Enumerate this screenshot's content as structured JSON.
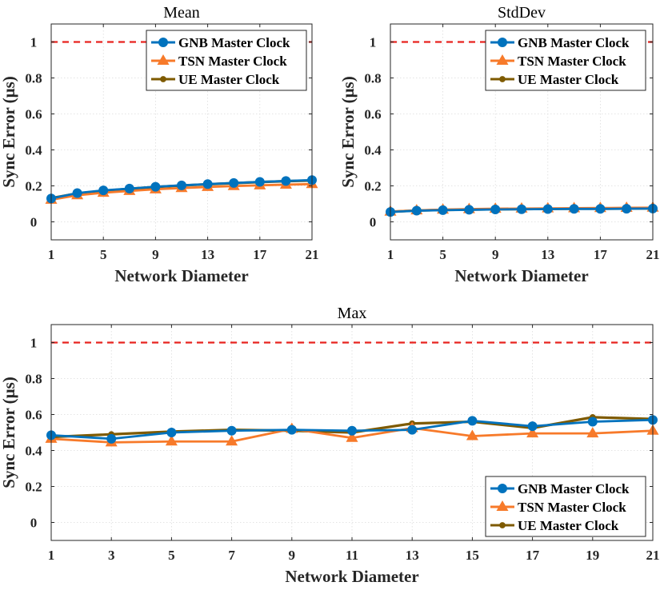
{
  "chart_data": [
    {
      "id": "mean",
      "type": "line",
      "title": "Mean",
      "xlabel": "Network Diameter",
      "ylabel": "Sync Error (μs)",
      "xlim": [
        1,
        21
      ],
      "ylim": [
        -0.1,
        1.1
      ],
      "xticks": [
        1,
        5,
        9,
        13,
        17,
        21
      ],
      "yticks": [
        0,
        0.2,
        0.4,
        0.6,
        0.8,
        1
      ],
      "ytick_labels": [
        "0",
        "0.2",
        "0.4",
        "0.6",
        "0.8",
        "1"
      ],
      "grid": true,
      "legend_position": "top-right",
      "reference_line": 1,
      "x": [
        1,
        3,
        5,
        7,
        9,
        11,
        13,
        15,
        17,
        19,
        21
      ],
      "series": [
        {
          "name": "GNB Master Clock",
          "color": "#0072BD",
          "marker": "circle",
          "values": [
            0.13,
            0.16,
            0.175,
            0.185,
            0.195,
            0.203,
            0.21,
            0.216,
            0.222,
            0.227,
            0.232
          ]
        },
        {
          "name": "TSN Master Clock",
          "color": "#F77A2A",
          "marker": "triangle",
          "values": [
            0.123,
            0.148,
            0.162,
            0.172,
            0.181,
            0.188,
            0.194,
            0.199,
            0.203,
            0.207,
            0.21
          ]
        },
        {
          "name": "UE Master Clock",
          "color": "#7E5A00",
          "marker": "dot",
          "values": [
            0.132,
            0.158,
            0.172,
            0.184,
            0.194,
            0.202,
            0.209,
            0.215,
            0.221,
            0.226,
            0.23
          ]
        }
      ]
    },
    {
      "id": "stddev",
      "type": "line",
      "title": "StdDev",
      "xlabel": "Network Diameter",
      "ylabel": "Sync Error (μs)",
      "xlim": [
        1,
        21
      ],
      "ylim": [
        -0.1,
        1.1
      ],
      "xticks": [
        1,
        5,
        9,
        13,
        17,
        21
      ],
      "yticks": [
        0,
        0.2,
        0.4,
        0.6,
        0.8,
        1
      ],
      "ytick_labels": [
        "0",
        "0.2",
        "0.4",
        "0.6",
        "0.8",
        "1"
      ],
      "grid": true,
      "legend_position": "top-right",
      "reference_line": 1,
      "x": [
        1,
        3,
        5,
        7,
        9,
        11,
        13,
        15,
        17,
        19,
        21
      ],
      "series": [
        {
          "name": "GNB Master Clock",
          "color": "#0072BD",
          "marker": "circle",
          "values": [
            0.055,
            0.062,
            0.065,
            0.067,
            0.069,
            0.07,
            0.071,
            0.072,
            0.072,
            0.073,
            0.074
          ]
        },
        {
          "name": "TSN Master Clock",
          "color": "#F77A2A",
          "marker": "triangle",
          "values": [
            0.057,
            0.064,
            0.068,
            0.071,
            0.073,
            0.074,
            0.075,
            0.076,
            0.077,
            0.078,
            0.079
          ]
        },
        {
          "name": "UE Master Clock",
          "color": "#7E5A00",
          "marker": "dot",
          "values": [
            0.056,
            0.063,
            0.066,
            0.068,
            0.07,
            0.071,
            0.072,
            0.073,
            0.073,
            0.074,
            0.075
          ]
        }
      ]
    },
    {
      "id": "max",
      "type": "line",
      "title": "Max",
      "xlabel": "Network Diameter",
      "ylabel": "Sync Error (μs)",
      "xlim": [
        1,
        21
      ],
      "ylim": [
        -0.1,
        1.1
      ],
      "xticks": [
        1,
        3,
        5,
        7,
        9,
        11,
        13,
        15,
        17,
        19,
        21
      ],
      "yticks": [
        0,
        0.2,
        0.4,
        0.6,
        0.8,
        1
      ],
      "ytick_labels": [
        "0",
        "0.2",
        "0.4",
        "0.6",
        "0.8",
        "1"
      ],
      "grid": true,
      "legend_position": "bottom-right",
      "reference_line": 1,
      "x": [
        1,
        3,
        5,
        7,
        9,
        11,
        13,
        15,
        17,
        19,
        21
      ],
      "series": [
        {
          "name": "GNB Master Clock",
          "color": "#0072BD",
          "marker": "circle",
          "values": [
            0.485,
            0.465,
            0.5,
            0.51,
            0.515,
            0.51,
            0.515,
            0.565,
            0.535,
            0.56,
            0.57
          ]
        },
        {
          "name": "TSN Master Clock",
          "color": "#F77A2A",
          "marker": "triangle",
          "values": [
            0.465,
            0.445,
            0.45,
            0.45,
            0.52,
            0.47,
            0.525,
            0.48,
            0.495,
            0.495,
            0.51
          ]
        },
        {
          "name": "UE Master Clock",
          "color": "#7E5A00",
          "marker": "dot",
          "values": [
            0.475,
            0.49,
            0.505,
            0.515,
            0.51,
            0.5,
            0.55,
            0.56,
            0.525,
            0.585,
            0.575
          ]
        }
      ]
    }
  ]
}
